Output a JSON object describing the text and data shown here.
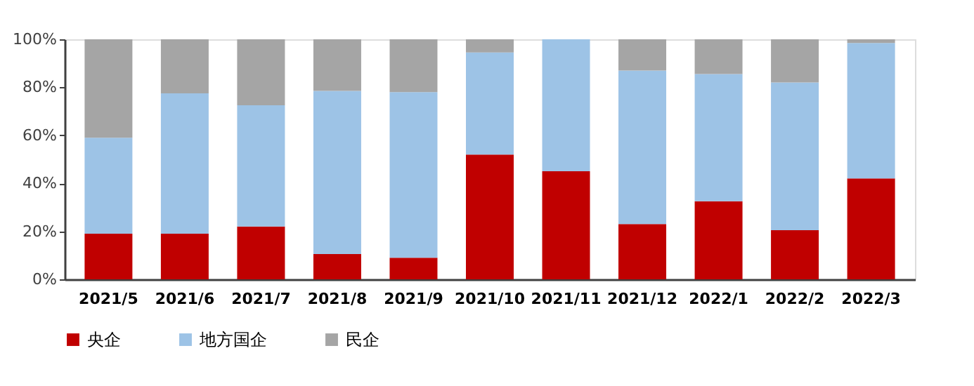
{
  "chart_data": {
    "type": "bar",
    "stacked": true,
    "categories": [
      "2021/5",
      "2021/6",
      "2021/7",
      "2021/8",
      "2021/9",
      "2021/10",
      "2021/11",
      "2021/12",
      "2022/1",
      "2022/2",
      "2022/3"
    ],
    "series": [
      {
        "name": "央企",
        "color": "#c00000",
        "values": [
          19,
          19,
          22,
          10.5,
          9,
          52,
          45,
          23,
          32.5,
          20.5,
          42
        ]
      },
      {
        "name": "地方国企",
        "color": "#9dc3e6",
        "values": [
          40,
          58.5,
          50.5,
          68,
          69,
          42.5,
          55,
          64,
          53,
          61.5,
          56.5
        ]
      },
      {
        "name": "民企",
        "color": "#a5a5a5",
        "values": [
          41,
          22.5,
          27.5,
          21.5,
          22,
          5.5,
          0,
          13,
          14.5,
          18,
          1.5
        ]
      }
    ],
    "ylim": [
      0,
      100
    ],
    "yticks": [
      {
        "value": 0,
        "label": "0%"
      },
      {
        "value": 20,
        "label": "20%"
      },
      {
        "value": 40,
        "label": "40%"
      },
      {
        "value": 60,
        "label": "60%"
      },
      {
        "value": 80,
        "label": "80%"
      },
      {
        "value": 100,
        "label": "100%"
      }
    ],
    "grid": false,
    "legend": "bottom"
  }
}
